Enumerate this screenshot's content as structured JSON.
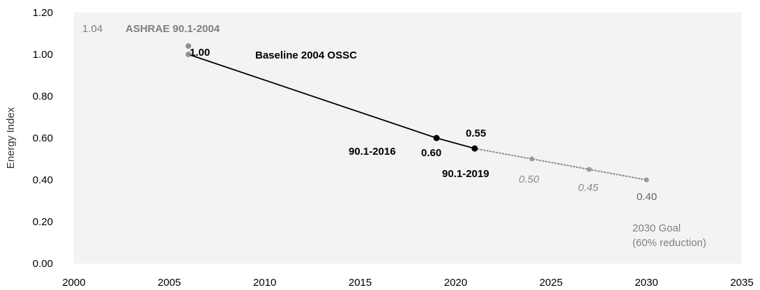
{
  "chart_data": {
    "type": "line",
    "xlim": [
      2000,
      2035
    ],
    "ylim": [
      0,
      1.2
    ],
    "x_ticks": [
      2000,
      2005,
      2010,
      2015,
      2020,
      2025,
      2030,
      2035
    ],
    "y_ticks": [
      "0.00",
      "0.20",
      "0.40",
      "0.60",
      "0.80",
      "1.00",
      "1.20"
    ],
    "ylabel": "Energy Index",
    "xlabel": "",
    "title": "",
    "grid": false,
    "colors": {
      "solid": "#000000",
      "projection": "#8c8c8c",
      "gray_label": "#7f7f7f",
      "dark_gray_label": "#666666"
    },
    "series": [
      {
        "style": "solid",
        "points": [
          {
            "x": 2006,
            "y": 1.0
          },
          {
            "x": 2019,
            "y": 0.6
          },
          {
            "x": 2021,
            "y": 0.55
          }
        ]
      },
      {
        "style": "dotted",
        "points": [
          {
            "x": 2021,
            "y": 0.55
          },
          {
            "x": 2024,
            "y": 0.5
          },
          {
            "x": 2027,
            "y": 0.45
          },
          {
            "x": 2030,
            "y": 0.4
          }
        ]
      }
    ],
    "extra_points": [
      {
        "x": 2006,
        "y": 1.04
      }
    ],
    "annotations": [
      {
        "id": "a104",
        "text": "1.04"
      },
      {
        "id": "ashrae2004",
        "text": "ASHRAE 90.1-2004"
      },
      {
        "id": "v100",
        "text": "1.00"
      },
      {
        "id": "baseline",
        "text": "Baseline 2004 OSSC"
      },
      {
        "id": "v055",
        "text": "0.55"
      },
      {
        "id": "std2016",
        "text": "90.1-2016"
      },
      {
        "id": "v060",
        "text": "0.60"
      },
      {
        "id": "std2019",
        "text": "90.1-2019"
      },
      {
        "id": "v050",
        "text": "0.50"
      },
      {
        "id": "v045",
        "text": "0.45"
      },
      {
        "id": "v040",
        "text": "0.40"
      },
      {
        "id": "goal1",
        "text": "2030 Goal"
      },
      {
        "id": "goal2",
        "text": "(60% reduction)"
      }
    ]
  }
}
